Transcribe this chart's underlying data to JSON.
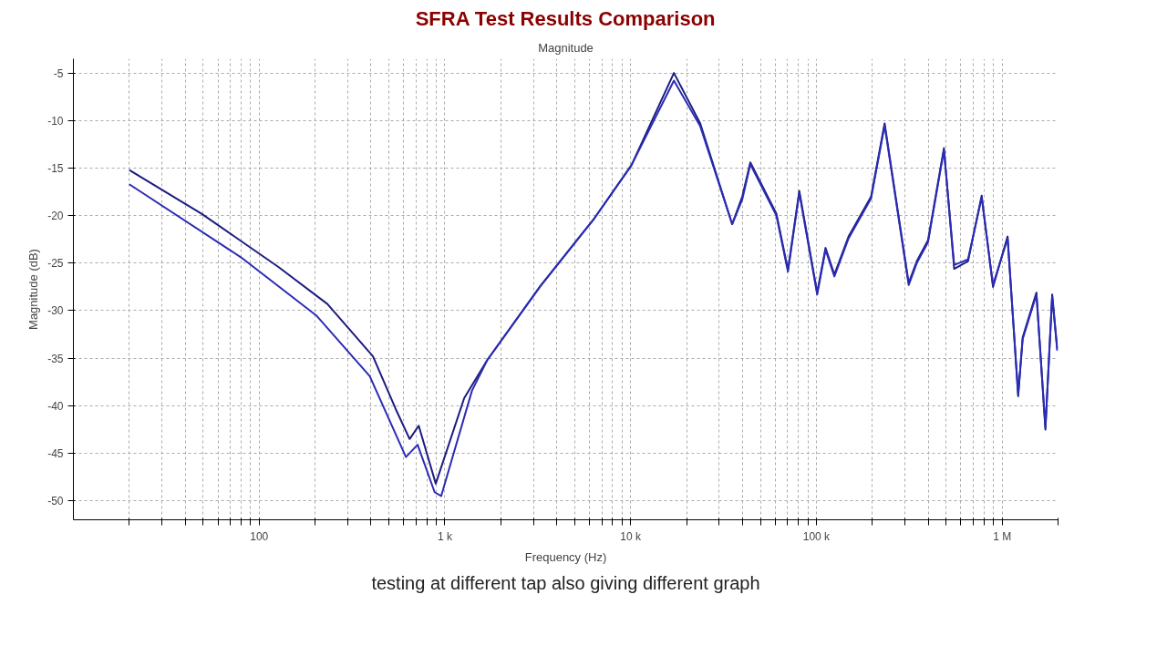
{
  "chart_data": {
    "type": "line",
    "title": "SFRA Test Results Comparison",
    "subtitle": "Magnitude",
    "xlabel": "Frequency (Hz)",
    "ylabel": "Magnitude (dB)",
    "log": "x",
    "grid": true,
    "line_style": "solid",
    "marker": "none",
    "xlim": [
      10,
      2000000
    ],
    "ylim": [
      -52,
      -3.5
    ],
    "xticks": [
      {
        "value": 20,
        "label": null
      },
      {
        "value": 30,
        "label": null
      },
      {
        "value": 40,
        "label": null
      },
      {
        "value": 50,
        "label": null
      },
      {
        "value": 60,
        "label": null
      },
      {
        "value": 70,
        "label": null
      },
      {
        "value": 80,
        "label": null
      },
      {
        "value": 90,
        "label": null
      },
      100,
      {
        "value": 200,
        "label": null
      },
      {
        "value": 300,
        "label": null
      },
      {
        "value": 400,
        "label": null
      },
      {
        "value": 500,
        "label": null
      },
      {
        "value": 600,
        "label": null
      },
      {
        "value": 700,
        "label": null
      },
      {
        "value": 800,
        "label": null
      },
      {
        "value": 900,
        "label": null
      },
      {
        "value": 1000,
        "label": "1 k"
      },
      {
        "value": 2000,
        "label": null
      },
      {
        "value": 3000,
        "label": null
      },
      {
        "value": 4000,
        "label": null
      },
      {
        "value": 5000,
        "label": null
      },
      {
        "value": 6000,
        "label": null
      },
      {
        "value": 7000,
        "label": null
      },
      {
        "value": 8000,
        "label": null
      },
      {
        "value": 9000,
        "label": null
      },
      {
        "value": 10000,
        "label": "10 k"
      },
      {
        "value": 20000,
        "label": null
      },
      {
        "value": 30000,
        "label": null
      },
      {
        "value": 40000,
        "label": null
      },
      {
        "value": 50000,
        "label": null
      },
      {
        "value": 60000,
        "label": null
      },
      {
        "value": 70000,
        "label": null
      },
      {
        "value": 80000,
        "label": null
      },
      {
        "value": 90000,
        "label": null
      },
      {
        "value": 100000,
        "label": "100 k"
      },
      {
        "value": 200000,
        "label": null
      },
      {
        "value": 300000,
        "label": null
      },
      {
        "value": 400000,
        "label": null
      },
      {
        "value": 500000,
        "label": null
      },
      {
        "value": 600000,
        "label": null
      },
      {
        "value": 700000,
        "label": null
      },
      {
        "value": 800000,
        "label": null
      },
      {
        "value": 900000,
        "label": null
      },
      {
        "value": 1000000,
        "label": "1 M"
      },
      {
        "value": 2000000,
        "label": null
      }
    ],
    "yticks": [
      -5,
      -10,
      -15,
      -20,
      -25,
      -30,
      -35,
      -40,
      -45,
      -50
    ],
    "annotations": [
      "testing at different tap also giving different graph"
    ],
    "series": [
      {
        "color": "#1c1c80",
        "x": [
          20,
          49,
          127,
          233,
          410,
          545,
          646,
          723,
          893,
          1270,
          1690,
          3270,
          6370,
          10100,
          17100,
          23700,
          35200,
          39900,
          44100,
          60900,
          70300,
          80900,
          101000,
          112000,
          125000,
          149000,
          197000,
          233000,
          314000,
          347000,
          399000,
          486000,
          552000,
          655000,
          776000,
          893000,
          1070000,
          1220000,
          1290000,
          1530000,
          1710000,
          1860000,
          1980000
        ],
        "values": [
          -15.2,
          -19.8,
          -25.4,
          -29.3,
          -34.8,
          -40.4,
          -43.5,
          -42.1,
          -48.2,
          -39.2,
          -35.2,
          -27.4,
          -20.3,
          -14.7,
          -5.0,
          -10.3,
          -20.9,
          -18.0,
          -14.4,
          -19.8,
          -25.7,
          -17.4,
          -28.1,
          -23.4,
          -26.2,
          -22.2,
          -18.0,
          -10.3,
          -27.1,
          -24.8,
          -22.6,
          -12.9,
          -25.6,
          -24.8,
          -17.9,
          -27.5,
          -22.2,
          -39.0,
          -32.8,
          -28.1,
          -42.5,
          -28.3,
          -34.0
        ]
      },
      {
        "color": "#2b2bb5",
        "x": [
          20,
          80,
          203,
          394,
          617,
          713,
          881,
          955,
          1400,
          1690,
          3270,
          6370,
          10100,
          17100,
          23700,
          35200,
          39900,
          44100,
          60900,
          70300,
          80900,
          101000,
          112000,
          125000,
          149000,
          197000,
          233000,
          314000,
          347000,
          399000,
          486000,
          552000,
          655000,
          776000,
          893000,
          1070000,
          1220000,
          1290000,
          1530000,
          1710000,
          1860000,
          1980000
        ],
        "values": [
          -16.7,
          -24.4,
          -30.5,
          -36.9,
          -45.4,
          -44.1,
          -49.1,
          -49.5,
          -38.4,
          -35.2,
          -27.4,
          -20.3,
          -14.7,
          -5.8,
          -10.6,
          -20.9,
          -18.3,
          -14.6,
          -20.0,
          -25.9,
          -17.6,
          -28.3,
          -23.6,
          -26.4,
          -22.4,
          -18.2,
          -10.5,
          -27.3,
          -25.0,
          -22.8,
          -13.1,
          -25.2,
          -24.6,
          -18.1,
          -27.3,
          -22.4,
          -38.8,
          -33.0,
          -28.3,
          -42.3,
          -28.5,
          -34.2
        ]
      }
    ]
  }
}
